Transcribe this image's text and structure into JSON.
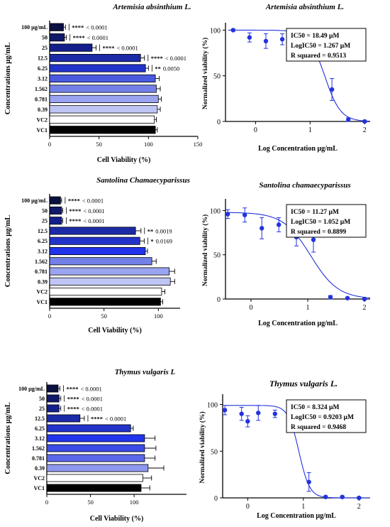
{
  "chart_data": [
    {
      "type": "bar",
      "orientation": "horizontal",
      "title": "Artemisia absinthium L.",
      "xlabel": "Cell Viability (%)",
      "ylabel": "Concentrations µg/mL",
      "xlim": [
        0,
        150
      ],
      "xticks": [
        0,
        50,
        100,
        150
      ],
      "categories": [
        "100 µg/mL",
        "50",
        "25",
        "12.5",
        "6.25",
        "3.12",
        "1.562",
        "0.781",
        "0.39",
        "VC2",
        "VC1"
      ],
      "values": [
        14,
        15,
        43,
        92,
        97,
        107,
        108,
        110,
        109,
        106,
        107
      ],
      "errors": [
        2,
        2,
        4,
        4,
        3,
        4,
        4,
        3,
        3,
        2,
        2
      ],
      "significance": [
        "****",
        "****",
        "****",
        "****",
        "**",
        "",
        "",
        "",
        "",
        "",
        ""
      ],
      "p_values": [
        "< 0.0001",
        "< 0.0001",
        "< 0.0001",
        "< 0.0001",
        "0.0050",
        "",
        "",
        "",
        "",
        "",
        ""
      ],
      "colors": [
        "#0a1040",
        "#10196a",
        "#141f8c",
        "#1c2aa8",
        "#2233cc",
        "#4a5ae0",
        "#7280e8",
        "#9aa4f0",
        "#bfc6f6",
        "#ffffff",
        "#000000"
      ]
    },
    {
      "type": "scatter",
      "title": "Artemisia absinthium L.",
      "xlabel": "Log Concentration µg/mL",
      "ylabel": "Normalized viability (%)",
      "xlim": [
        -0.55,
        2.1
      ],
      "ylim": [
        0,
        105
      ],
      "xticks": [
        0,
        1,
        2
      ],
      "yticks": [
        0,
        50,
        100
      ],
      "x": [
        -0.41,
        -0.11,
        0.19,
        0.49,
        0.8,
        1.1,
        1.4,
        1.7,
        2.0
      ],
      "y": [
        100,
        92,
        88,
        90,
        84,
        76,
        35,
        2,
        0
      ],
      "errors": [
        1,
        5,
        8,
        6,
        5,
        3,
        12,
        2,
        1
      ],
      "fit": {
        "top": 100,
        "bottom": 0,
        "logIC50": 1.267,
        "hill": -3.0
      },
      "stats": [
        "IC50 = 18.49 µM",
        "LogIC50 = 1.267 µM",
        "R squared = 0.9513"
      ]
    },
    {
      "type": "bar",
      "orientation": "horizontal",
      "title": "Santolina Chamaecyparissus",
      "xlabel": "Cell Viability (%)",
      "ylabel": "Concentrations µg/mL",
      "xlim": [
        0,
        120
      ],
      "xticks": [
        0,
        50,
        100
      ],
      "categories": [
        "100 µg/mL",
        "50",
        "25",
        "12.5",
        "6.25",
        "3.12",
        "1.562",
        "0.781",
        "0.39",
        "VC2",
        "VC1"
      ],
      "values": [
        10,
        11,
        11,
        79,
        83,
        88,
        94,
        110,
        111,
        103,
        102
      ],
      "errors": [
        1,
        1,
        1,
        5,
        4,
        2,
        4,
        5,
        4,
        3,
        2
      ],
      "significance": [
        "****",
        "****",
        "****",
        "**",
        "*",
        "",
        "",
        "",
        "",
        "",
        ""
      ],
      "p_values": [
        "< 0.0001",
        "< 0.0001",
        "< 0.0001",
        "0.0019",
        "0.0169",
        "",
        "",
        "",
        "",
        "",
        ""
      ],
      "colors": [
        "#0a1040",
        "#10196a",
        "#141f8c",
        "#1c2aa8",
        "#2233cc",
        "#2233ee",
        "#7280e8",
        "#9aa4f0",
        "#bfc6f6",
        "#ffffff",
        "#000000"
      ]
    },
    {
      "type": "scatter",
      "title": "Santolina chamaecyparissus",
      "xlabel": "Log Concentration µg/mL",
      "ylabel": "Normalized viability (%)",
      "xlim": [
        -0.45,
        2.1
      ],
      "ylim": [
        0,
        110
      ],
      "xticks": [
        0,
        1,
        2
      ],
      "yticks": [
        0,
        50,
        100
      ],
      "x": [
        -0.41,
        -0.11,
        0.19,
        0.49,
        0.8,
        1.1,
        1.4,
        1.7,
        2.0
      ],
      "y": [
        96,
        95,
        80,
        84,
        70,
        67,
        2,
        1,
        0
      ],
      "errors": [
        5,
        8,
        12,
        8,
        10,
        14,
        2,
        1,
        1
      ],
      "fit": {
        "top": 98,
        "bottom": 0,
        "logIC50": 1.052,
        "hill": -1.8
      },
      "stats": [
        "IC50 = 11.27 µM",
        "LogIC50 = 1.052 µM",
        "R squared = 0.8899"
      ]
    },
    {
      "type": "bar",
      "orientation": "horizontal",
      "title": "Thymus vulgaris L",
      "xlabel": "Cell Viability (%)",
      "ylabel": "Concentrations µg/mL",
      "xlim": [
        0,
        160
      ],
      "xticks": [
        0,
        50,
        100
      ],
      "categories": [
        "100 µg/mL",
        "50",
        "25",
        "12.5",
        "6.25",
        "3.12",
        "1.562",
        "0.781",
        "0.39",
        "VC2",
        "VC1"
      ],
      "values": [
        13,
        14,
        14,
        38,
        96,
        112,
        112,
        112,
        116,
        110,
        108
      ],
      "errors": [
        2,
        2,
        2,
        5,
        3,
        12,
        13,
        12,
        18,
        10,
        10
      ],
      "significance": [
        "****",
        "****",
        "****",
        "****",
        "",
        "",
        "",
        "",
        "",
        "",
        ""
      ],
      "p_values": [
        "< 0.0001",
        "< 0.0001",
        "< 0.0001",
        "< 0.0001",
        "",
        "",
        "",
        "",
        "",
        "",
        ""
      ],
      "colors": [
        "#0a1040",
        "#10196a",
        "#141f8c",
        "#1c2aa8",
        "#2233cc",
        "#2233ee",
        "#3a4be6",
        "#5a68e8",
        "#8d98ee",
        "#ffffff",
        "#000000"
      ]
    },
    {
      "type": "scatter",
      "title": "Thymus vulgaris L.",
      "xlabel": "Log Concentration µg/mL",
      "ylabel": "Normalized viability (%)",
      "xlim": [
        -0.45,
        2.2
      ],
      "ylim": [
        0,
        108
      ],
      "xticks": [
        0,
        1,
        2
      ],
      "yticks": [
        0,
        50,
        100
      ],
      "x": [
        -0.41,
        -0.11,
        0.0,
        0.19,
        0.49,
        0.8,
        1.1,
        1.4,
        1.7,
        2.0
      ],
      "y": [
        94,
        90,
        82,
        91,
        90,
        77,
        17,
        1,
        1,
        0
      ],
      "errors": [
        5,
        7,
        6,
        8,
        4,
        5,
        10,
        1,
        1,
        1
      ],
      "fit": {
        "top": 99,
        "bottom": 0,
        "logIC50": 0.9203,
        "hill": -4.5
      },
      "stats": [
        "IC50 = 8.324 µM",
        "LogIC50 = 0.9203 µM",
        "R squared = 0.9468"
      ]
    }
  ]
}
